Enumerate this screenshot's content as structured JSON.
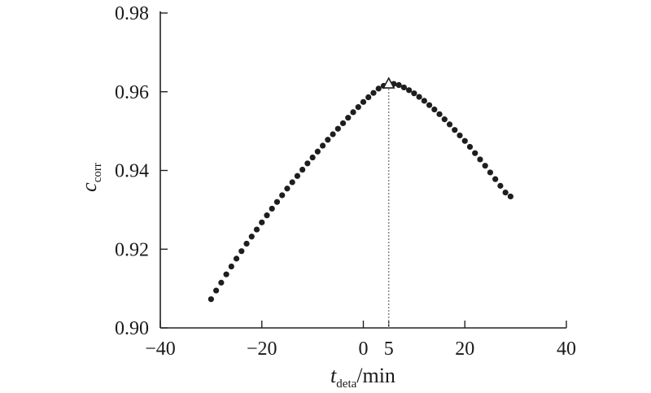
{
  "chart_data": {
    "type": "scatter",
    "xlabel": {
      "main": "t",
      "sub": "deta",
      "unit": "/min"
    },
    "ylabel": {
      "main": "c",
      "sub": "corr"
    },
    "xlim": [
      -40,
      40
    ],
    "ylim": [
      0.9,
      0.98
    ],
    "x_ticks": [
      "−40",
      "−20",
      "0",
      "5",
      "20",
      "40"
    ],
    "x_tick_values": [
      -40,
      -20,
      0,
      5,
      20,
      40
    ],
    "y_ticks": [
      "0.90",
      "0.92",
      "0.94",
      "0.96",
      "0.98"
    ],
    "y_tick_values": [
      0.9,
      0.92,
      0.94,
      0.96,
      0.98
    ],
    "marker": "filled-circle",
    "peak": {
      "x": 5,
      "y": 0.962,
      "marker": "open-triangle"
    },
    "reference_line": {
      "x": 5,
      "style": "dotted"
    },
    "series": [
      {
        "points": [
          [
            -30,
            0.9073
          ],
          [
            -29,
            0.9095
          ],
          [
            -28,
            0.9115
          ],
          [
            -27,
            0.9136
          ],
          [
            -26,
            0.9156
          ],
          [
            -25,
            0.9176
          ],
          [
            -24,
            0.9195
          ],
          [
            -23,
            0.9214
          ],
          [
            -22,
            0.9232
          ],
          [
            -21,
            0.925
          ],
          [
            -20,
            0.9268
          ],
          [
            -19,
            0.9286
          ],
          [
            -18,
            0.9303
          ],
          [
            -17,
            0.932
          ],
          [
            -16,
            0.9337
          ],
          [
            -15,
            0.9354
          ],
          [
            -14,
            0.937
          ],
          [
            -13,
            0.9386
          ],
          [
            -12,
            0.9402
          ],
          [
            -11,
            0.9418
          ],
          [
            -10,
            0.9433
          ],
          [
            -9,
            0.9448
          ],
          [
            -8,
            0.9463
          ],
          [
            -7,
            0.9478
          ],
          [
            -6,
            0.9492
          ],
          [
            -5,
            0.9506
          ],
          [
            -4,
            0.952
          ],
          [
            -3,
            0.9534
          ],
          [
            -2,
            0.9548
          ],
          [
            -1,
            0.9561
          ],
          [
            0,
            0.9574
          ],
          [
            1,
            0.9586
          ],
          [
            2,
            0.9597
          ],
          [
            3,
            0.9608
          ],
          [
            4,
            0.9615
          ],
          [
            5,
            0.962
          ],
          [
            6,
            0.962
          ],
          [
            7,
            0.9617
          ],
          [
            8,
            0.9611
          ],
          [
            9,
            0.9604
          ],
          [
            10,
            0.9596
          ],
          [
            11,
            0.9587
          ],
          [
            12,
            0.9577
          ],
          [
            13,
            0.9566
          ],
          [
            14,
            0.9555
          ],
          [
            15,
            0.9543
          ],
          [
            16,
            0.953
          ],
          [
            17,
            0.9517
          ],
          [
            18,
            0.9503
          ],
          [
            19,
            0.9489
          ],
          [
            20,
            0.9475
          ],
          [
            21,
            0.946
          ],
          [
            22,
            0.9444
          ],
          [
            23,
            0.9428
          ],
          [
            24,
            0.9412
          ],
          [
            25,
            0.9395
          ],
          [
            26,
            0.9378
          ],
          [
            27,
            0.9361
          ],
          [
            28,
            0.9344
          ],
          [
            29,
            0.9334
          ]
        ]
      }
    ]
  }
}
